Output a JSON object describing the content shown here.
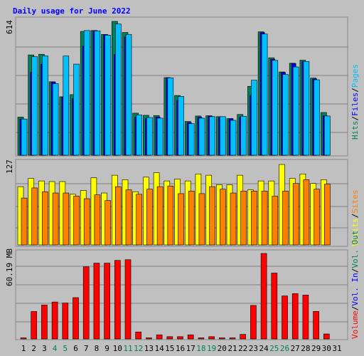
{
  "title": "Daily usage for June 2022",
  "colors": {
    "background": "#c0c0c0",
    "title": "#0000ff",
    "hits": "#00805c",
    "files": "#0000ff",
    "pages": "#00c0ff",
    "visits": "#ffff00",
    "sites": "#ff8000",
    "kbytes": "#ff0000",
    "weekend": "#00805c",
    "weekday": "#000000"
  },
  "chart_data": [
    {
      "type": "bar",
      "panel": "hits-files-pages",
      "max_label": "614",
      "categories": [
        "1",
        "2",
        "3",
        "4",
        "5",
        "6",
        "7",
        "8",
        "9",
        "10",
        "11",
        "12",
        "13",
        "14",
        "15",
        "16",
        "17",
        "18",
        "19",
        "20",
        "21",
        "22",
        "23",
        "24",
        "25",
        "26",
        "27",
        "28",
        "29",
        "30"
      ],
      "series": [
        {
          "name": "Hits",
          "values": [
            175,
            460,
            463,
            337,
            268,
            278,
            568,
            572,
            554,
            614,
            563,
            193,
            183,
            182,
            356,
            274,
            155,
            180,
            181,
            177,
            168,
            187,
            316,
            566,
            447,
            382,
            422,
            436,
            354,
            196
          ]
        },
        {
          "name": "Files",
          "values": [
            166,
            380,
            417,
            336,
            266,
            260,
            500,
            572,
            554,
            462,
            542,
            175,
            168,
            175,
            356,
            252,
            150,
            174,
            180,
            173,
            168,
            174,
            274,
            563,
            440,
            380,
            420,
            430,
            350,
            181
          ]
        },
        {
          "name": "Pages",
          "values": [
            166,
            452,
            456,
            328,
            455,
            418,
            572,
            570,
            551,
            602,
            554,
            185,
            173,
            170,
            355,
            270,
            145,
            170,
            177,
            177,
            160,
            179,
            344,
            556,
            435,
            370,
            405,
            430,
            346,
            180
          ]
        }
      ],
      "legend": [
        "Hits",
        "Files",
        "Pages"
      ]
    },
    {
      "type": "bar",
      "panel": "visits-sites",
      "max_label": "127",
      "categories": [
        "1",
        "2",
        "3",
        "4",
        "5",
        "6",
        "7",
        "8",
        "9",
        "10",
        "11",
        "12",
        "13",
        "14",
        "15",
        "16",
        "17",
        "18",
        "19",
        "20",
        "21",
        "22",
        "23",
        "24",
        "25",
        "26",
        "27",
        "28",
        "29",
        "30"
      ],
      "series": [
        {
          "name": "Visits",
          "values": [
            92,
            105,
            101,
            100,
            100,
            80,
            86,
            106,
            82,
            110,
            103,
            84,
            107,
            114,
            101,
            104,
            101,
            112,
            110,
            95,
            95,
            110,
            87,
            101,
            101,
            127,
            105,
            112,
            97,
            103
          ]
        },
        {
          "name": "Sites",
          "values": [
            74,
            90,
            84,
            82,
            82,
            77,
            73,
            79,
            70,
            92,
            87,
            80,
            88,
            92,
            93,
            81,
            85,
            81,
            92,
            88,
            82,
            85,
            85,
            85,
            77,
            85,
            97,
            103,
            88,
            96
          ]
        }
      ],
      "legend": [
        "Visits",
        "Sites"
      ]
    },
    {
      "type": "bar",
      "panel": "volume",
      "max_label": "60.19 MB",
      "categories": [
        "1",
        "2",
        "3",
        "4",
        "5",
        "6",
        "7",
        "8",
        "9",
        "10",
        "11",
        "12",
        "13",
        "14",
        "15",
        "16",
        "17",
        "18",
        "19",
        "20",
        "21",
        "22",
        "23",
        "24",
        "25",
        "26",
        "27",
        "28",
        "29",
        "30"
      ],
      "series": [
        {
          "name": "Volume",
          "values": [
            0.3,
            19.3,
            23.9,
            26.0,
            25.3,
            29.1,
            50.8,
            53.4,
            53.4,
            55.3,
            55.8,
            4.9,
            0.0,
            2.9,
            1.6,
            1.6,
            2.9,
            0.6,
            1.6,
            0.6,
            0.6,
            3.2,
            23.6,
            60.19,
            46.4,
            30.3,
            31.9,
            30.9,
            19.4,
            3.5
          ]
        }
      ],
      "legend": [
        "Volume",
        "Vol. In",
        "Vol. Out"
      ]
    }
  ],
  "x_labels": [
    {
      "text": "1",
      "weekend": false
    },
    {
      "text": "2",
      "weekend": false
    },
    {
      "text": "3",
      "weekend": false
    },
    {
      "text": "4",
      "weekend": true
    },
    {
      "text": "5",
      "weekend": true
    },
    {
      "text": "6",
      "weekend": false
    },
    {
      "text": "7",
      "weekend": false
    },
    {
      "text": "8",
      "weekend": false
    },
    {
      "text": "9",
      "weekend": false
    },
    {
      "text": "10",
      "weekend": false
    },
    {
      "text": "11",
      "weekend": true
    },
    {
      "text": "12",
      "weekend": true
    },
    {
      "text": "13",
      "weekend": false
    },
    {
      "text": "14",
      "weekend": false
    },
    {
      "text": "15",
      "weekend": false
    },
    {
      "text": "16",
      "weekend": false
    },
    {
      "text": "17",
      "weekend": false
    },
    {
      "text": "18",
      "weekend": true
    },
    {
      "text": "19",
      "weekend": true
    },
    {
      "text": "20",
      "weekend": false
    },
    {
      "text": "21",
      "weekend": false
    },
    {
      "text": "22",
      "weekend": false
    },
    {
      "text": "23",
      "weekend": false
    },
    {
      "text": "24",
      "weekend": false
    },
    {
      "text": "25",
      "weekend": true
    },
    {
      "text": "26",
      "weekend": true
    },
    {
      "text": "27",
      "weekend": false
    },
    {
      "text": "28",
      "weekend": false
    },
    {
      "text": "29",
      "weekend": false
    },
    {
      "text": "30",
      "weekend": false
    },
    {
      "text": "31",
      "weekend": false
    }
  ],
  "right_legends": {
    "top": [
      {
        "text": "Hits",
        "color": "#00805c"
      },
      {
        "text": "/",
        "color": "#000000"
      },
      {
        "text": "Files",
        "color": "#0000ff"
      },
      {
        "text": "/",
        "color": "#000000"
      },
      {
        "text": "Pages",
        "color": "#00c0ff"
      }
    ],
    "middle": [
      {
        "text": "Visits",
        "color": "#ffff00"
      },
      {
        "text": "/",
        "color": "#000000"
      },
      {
        "text": "Sites",
        "color": "#ff8000"
      }
    ],
    "bottom": [
      {
        "text": "Volume",
        "color": "#ff0000"
      },
      {
        "text": "/",
        "color": "#000000"
      },
      {
        "text": "Vol. In",
        "color": "#0000ff"
      },
      {
        "text": "/",
        "color": "#000000"
      },
      {
        "text": "Vol. Out",
        "color": "#00805c"
      }
    ]
  }
}
